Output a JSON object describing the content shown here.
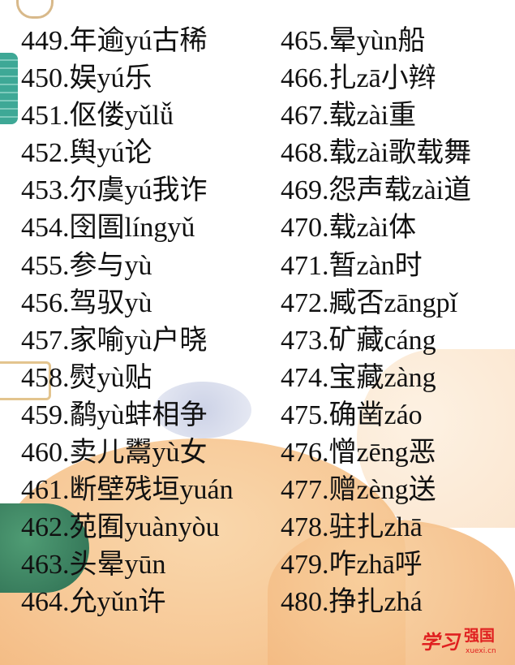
{
  "left_column": [
    "449.年逾yú古稀",
    "450.娱yú乐",
    "451.伛偻yǔlǚ",
    "452.舆yú论",
    "453.尔虞yú我诈",
    "454.囹圄língyǔ",
    "455.参与yù",
    "456.驾驭yù",
    "457.家喻yù户晓",
    "458.熨yù贴",
    "459.鹬yù蚌相争",
    "460.卖儿鬻yù女",
    "461.断壁残垣yuán",
    "462.苑囿yuànyòu",
    "463.头晕yūn",
    "464.允yǔn许"
  ],
  "right_column": [
    "465.晕yùn船",
    "466.扎zā小辫",
    "467.载zài重",
    "468.载zài歌载舞",
    "469.怨声载zài道",
    "470.载zài体",
    "471.暂zàn时",
    "472.臧否zāngpǐ",
    "473.矿藏cáng",
    "474.宝藏zàng",
    "475.确凿záo",
    "476.憎zēng恶",
    "477.赠zèng送",
    "478.驻扎zhā",
    "479.咋zhā呼",
    "480.挣扎zhá"
  ],
  "logo": {
    "brush_text": "学习",
    "name": "强国",
    "url": "xuexi.cn",
    "color": "#e02020"
  }
}
